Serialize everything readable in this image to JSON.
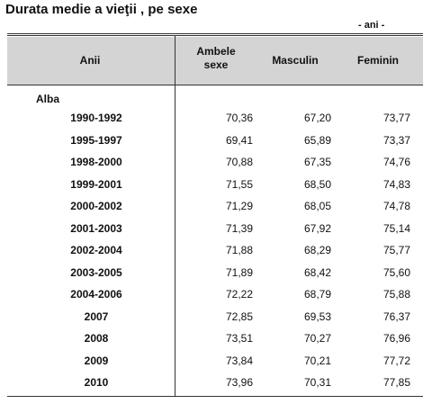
{
  "header": {
    "title": "Durata medie a vieţii , pe sexe",
    "unit": "- ani -"
  },
  "table": {
    "columns": [
      "Anii",
      "Ambele sexe",
      "Masculin",
      "Feminin"
    ],
    "group": "Alba",
    "rows": [
      [
        "1990-1992",
        "70,36",
        "67,20",
        "73,77"
      ],
      [
        "1995-1997",
        "69,41",
        "65,89",
        "73,37"
      ],
      [
        "1998-2000",
        "70,88",
        "67,35",
        "74,76"
      ],
      [
        "1999-2001",
        "71,55",
        "68,50",
        "74,83"
      ],
      [
        "2000-2002",
        "71,29",
        "68,05",
        "74,78"
      ],
      [
        "2001-2003",
        "71,39",
        "67,92",
        "75,14"
      ],
      [
        "2002-2004",
        "71,88",
        "68,29",
        "75,77"
      ],
      [
        "2003-2005",
        "71,89",
        "68,42",
        "75,60"
      ],
      [
        "2004-2006",
        "72,22",
        "68,79",
        "75,88"
      ],
      [
        "2007",
        "72,85",
        "69,53",
        "76,37"
      ],
      [
        "2008",
        "73,51",
        "70,27",
        "76,96"
      ],
      [
        "2009",
        "73,84",
        "70,21",
        "77,72"
      ],
      [
        "2010",
        "73,96",
        "70,31",
        "77,85"
      ]
    ]
  }
}
